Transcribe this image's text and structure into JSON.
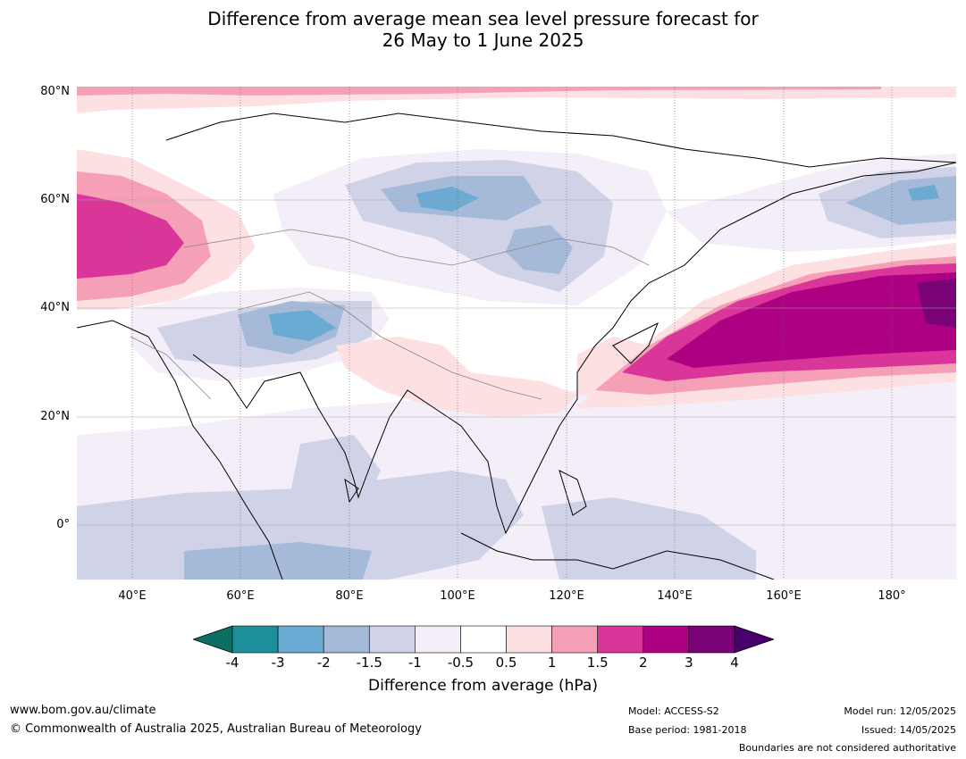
{
  "title_line1": "Difference from average mean sea level pressure forecast for",
  "title_line2": "26 May to 1 June 2025",
  "latitude_labels": [
    "80°N",
    "60°N",
    "40°N",
    "20°N",
    "0°"
  ],
  "longitude_labels": [
    "40°E",
    "60°E",
    "80°E",
    "100°E",
    "120°E",
    "140°E",
    "160°E",
    "180°"
  ],
  "colorbar": {
    "ticks": [
      "-4",
      "-3",
      "-2",
      "-1.5",
      "-1",
      "-0.5",
      "0.5",
      "1",
      "1.5",
      "2",
      "3",
      "4"
    ],
    "colors": [
      "#0d6e63",
      "#1c8f99",
      "#6aaad3",
      "#a5bad9",
      "#d0d3e7",
      "#f3eef7",
      "#ffffff",
      "#fde0e1",
      "#f6a0b7",
      "#da3598",
      "#ad0082",
      "#790277",
      "#49006a"
    ],
    "label": "Difference from average (hPa)"
  },
  "footer": {
    "website": "www.bom.gov.au/climate",
    "copyright": "© Commonwealth of Australia 2025, Australian Bureau of Meteorology",
    "model": "Model: ACCESS-S2",
    "base_period": "Base period: 1981-2018",
    "model_run": "Model run: 12/05/2025",
    "issued": "Issued: 14/05/2025",
    "disclaimer": "Boundaries are not considered authoritative"
  }
}
